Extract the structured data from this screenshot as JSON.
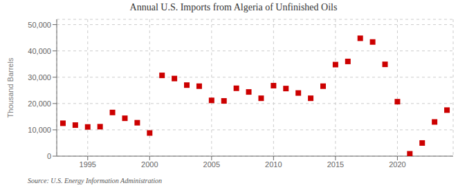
{
  "chart_data": {
    "type": "scatter",
    "title": "Annual U.S. Imports from Algeria of Unfinished Oils",
    "ylabel": "Thousand Barrels",
    "annotations": [
      "Source: U.S. Energy Information Administration"
    ],
    "x": [
      1993,
      1994,
      1995,
      1996,
      1997,
      1998,
      1999,
      2000,
      2001,
      2002,
      2003,
      2004,
      2005,
      2006,
      2007,
      2008,
      2009,
      2010,
      2011,
      2012,
      2013,
      2014,
      2015,
      2016,
      2017,
      2018,
      2019,
      2020,
      2021,
      2022,
      2023,
      2024
    ],
    "values": [
      12500,
      11800,
      11100,
      11200,
      16600,
      14400,
      12700,
      8800,
      30700,
      29500,
      27000,
      26600,
      21200,
      21000,
      25800,
      24400,
      22000,
      26800,
      25700,
      24000,
      22000,
      26600,
      34800,
      36000,
      44800,
      43400,
      34900,
      20700,
      900,
      5000,
      13000,
      17500
    ],
    "color": "#cc0000",
    "marker": "square",
    "xlim": [
      1992.5,
      2024.5
    ],
    "xticks": [
      1995,
      2000,
      2005,
      2010,
      2015,
      2020
    ],
    "ylim": [
      0,
      52000
    ],
    "yticks": [
      0,
      {
        "value": 10000,
        "label": "10,000"
      },
      {
        "value": 20000,
        "label": "20,000"
      },
      {
        "value": 30000,
        "label": "30,000"
      },
      {
        "value": 40000,
        "label": "40,000"
      },
      {
        "value": 50000,
        "label": "50,000"
      }
    ],
    "grid": true
  }
}
